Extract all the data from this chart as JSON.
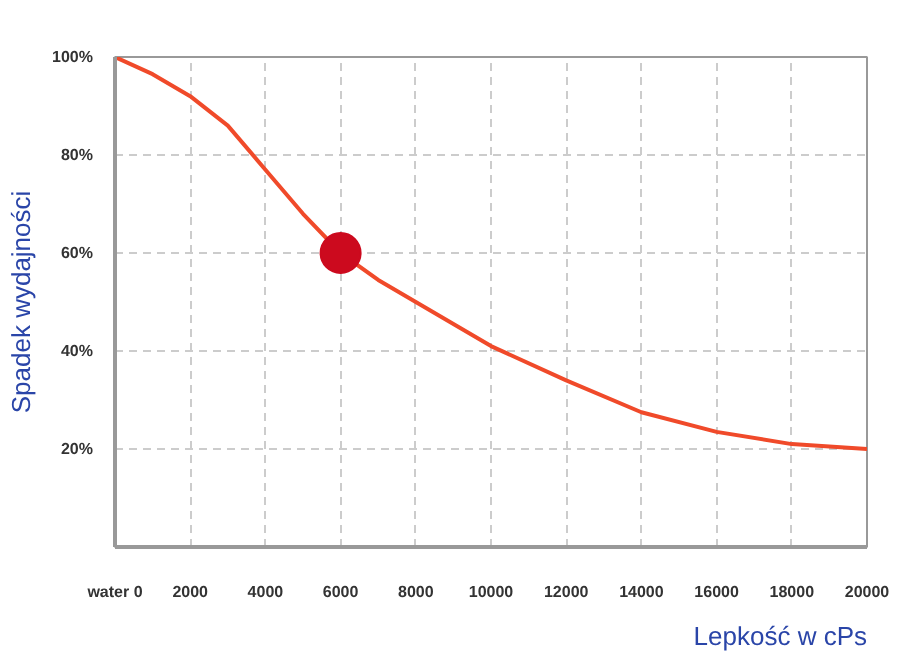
{
  "chart_data": {
    "type": "line",
    "xlabel": "Lepkość w cPs",
    "ylabel": "Spadek wydajności",
    "xlim": [
      0,
      20000
    ],
    "ylim": [
      0,
      100
    ],
    "xticks": [
      {
        "value": 0,
        "label": "water 0"
      },
      2000,
      4000,
      6000,
      8000,
      10000,
      12000,
      14000,
      16000,
      18000,
      20000
    ],
    "yticks": [
      {
        "value": 20,
        "label": "20%"
      },
      {
        "value": 40,
        "label": "40%"
      },
      {
        "value": 60,
        "label": "60%"
      },
      {
        "value": 80,
        "label": "80%"
      },
      {
        "value": 100,
        "label": "100%"
      }
    ],
    "grid": true,
    "line_style": "solid",
    "series": [
      {
        "color": "#f04a2a",
        "x": [
          0,
          1000,
          2000,
          3000,
          4000,
          5000,
          6000,
          7000,
          8000,
          10000,
          12000,
          14000,
          16000,
          18000,
          20000
        ],
        "values": [
          100,
          96.5,
          92,
          86,
          77,
          68,
          60,
          54.5,
          50,
          41,
          34,
          27.5,
          23.5,
          21,
          20
        ]
      },
      {
        "type": "scatter",
        "marker": "circle",
        "color": "#cc0a1e",
        "x": [
          6000
        ],
        "values": [
          60
        ]
      }
    ]
  }
}
